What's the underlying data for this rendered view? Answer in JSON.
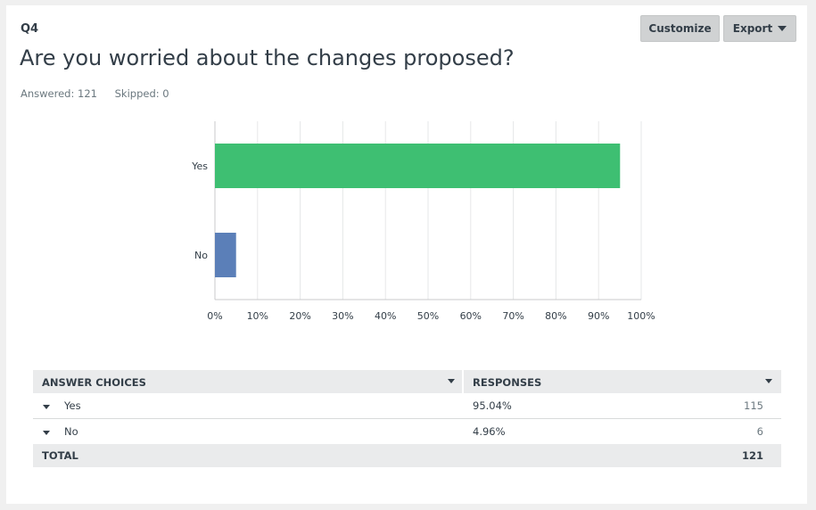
{
  "question": {
    "number": "Q4",
    "title": "Are you worried about the changes proposed?",
    "answered": "Answered: 121",
    "skipped": "Skipped: 0"
  },
  "toolbar": {
    "customize_label": "Customize",
    "export_label": "Export"
  },
  "chart_data": {
    "type": "bar",
    "orientation": "horizontal",
    "categories": [
      "Yes",
      "No"
    ],
    "values": [
      95.04,
      4.96
    ],
    "colors": [
      "#3ebf72",
      "#5b7fb8"
    ],
    "xlim": [
      0,
      100
    ],
    "xticks": [
      "0%",
      "10%",
      "20%",
      "30%",
      "40%",
      "50%",
      "60%",
      "70%",
      "80%",
      "90%",
      "100%"
    ],
    "grid": true
  },
  "table": {
    "headers": {
      "choices": "ANSWER CHOICES",
      "responses": "RESPONSES"
    },
    "rows": [
      {
        "label": "Yes",
        "percent": "95.04%",
        "count": "115"
      },
      {
        "label": "No",
        "percent": "4.96%",
        "count": "6"
      }
    ],
    "total": {
      "label": "TOTAL",
      "count": "121"
    }
  }
}
